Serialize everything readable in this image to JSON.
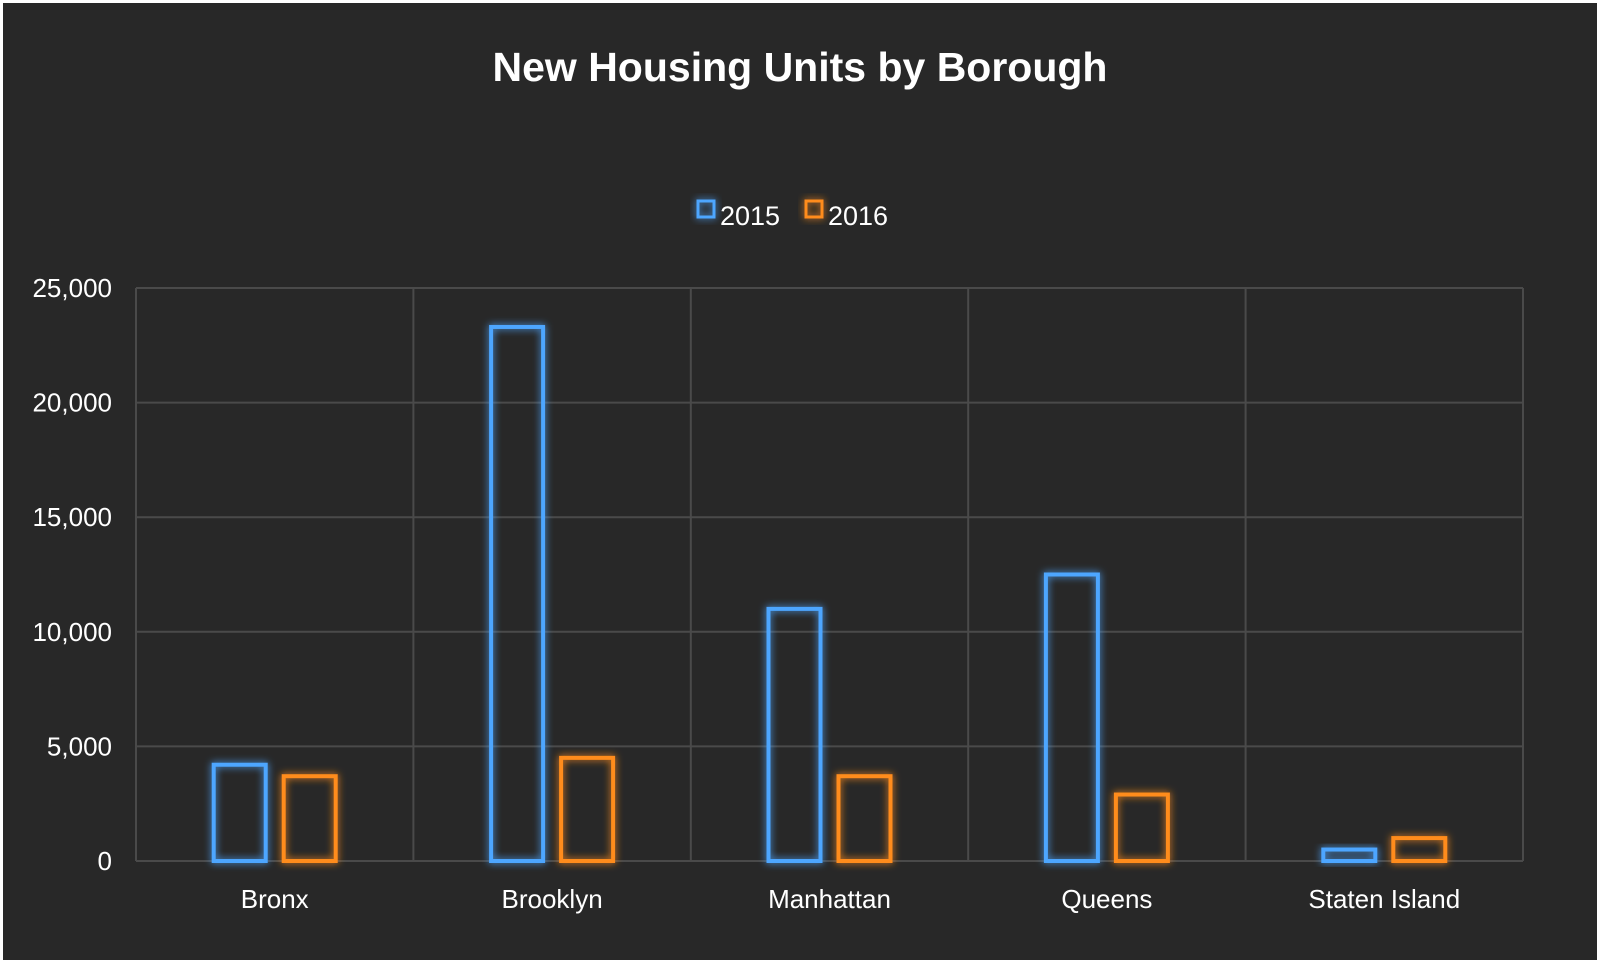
{
  "chart_data": {
    "type": "bar",
    "title": "New Housing Units by Borough",
    "xlabel": "",
    "ylabel": "",
    "categories": [
      "Bronx",
      "Brooklyn",
      "Manhattan",
      "Queens",
      "Staten Island"
    ],
    "series": [
      {
        "name": "2015",
        "color": "#4da6ff",
        "values": [
          4200,
          23300,
          11000,
          12500,
          500
        ]
      },
      {
        "name": "2016",
        "color": "#ff8c1a",
        "values": [
          3700,
          4500,
          3700,
          2900,
          1000
        ]
      }
    ],
    "ylim": [
      0,
      25000
    ],
    "yticks": [
      0,
      5000,
      10000,
      15000,
      20000,
      25000
    ],
    "ytick_labels": [
      "0",
      "5,000",
      "10,000",
      "15,000",
      "20,000",
      "25,000"
    ],
    "grid": true,
    "legend_position": "top-center",
    "background_color": "#282828"
  }
}
